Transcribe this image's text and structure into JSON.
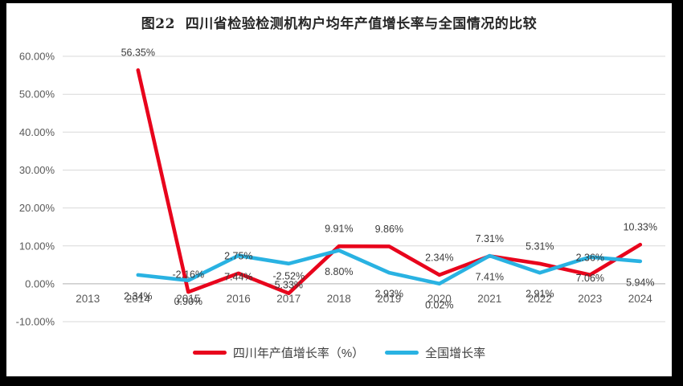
{
  "title": "图22  四川省检验检测机构户均年产值增长率与全国情况的比较",
  "chart_data": {
    "type": "line",
    "categories": [
      "2013",
      "2014",
      "2015",
      "2016",
      "2017",
      "2018",
      "2019",
      "2020",
      "2021",
      "2022",
      "2023",
      "2024"
    ],
    "series": [
      {
        "id": "sichuan",
        "name": "四川年产值增长率（%）",
        "color": "#e8041c",
        "values": [
          null,
          56.35,
          -2.16,
          2.75,
          -2.52,
          9.91,
          9.86,
          2.34,
          7.31,
          5.31,
          2.36,
          10.33
        ],
        "label_offset": -22
      },
      {
        "id": "national",
        "name": "全国增长率",
        "color": "#29b2e2",
        "values": [
          null,
          2.34,
          0.9,
          7.44,
          5.33,
          8.8,
          2.93,
          0.02,
          7.41,
          2.91,
          7.06,
          5.94
        ],
        "label_offset": 26
      }
    ],
    "ylim": [
      -10,
      60
    ],
    "ytick_values": [
      60,
      50,
      40,
      30,
      20,
      10,
      0,
      -10
    ],
    "yticks": [
      "60.00%",
      "50.00%",
      "40.00%",
      "30.00%",
      "20.00%",
      "10.00%",
      "0.00%",
      "-10.00%"
    ],
    "grid": true,
    "data_labels": true,
    "legend_position": "bottom"
  },
  "legend": {
    "items": [
      {
        "label": "四川年产值增长率（%）",
        "color": "#e8041c"
      },
      {
        "label": "全国增长率",
        "color": "#29b2e2"
      }
    ]
  },
  "colors": {
    "background": "#ffffff",
    "frame": "#000000",
    "gridline": "#d9d9d9",
    "axis_line": "#bfbfbf",
    "tick_text": "#595959",
    "data_label_text": "#3b3b3b",
    "title_text": "#262626"
  }
}
